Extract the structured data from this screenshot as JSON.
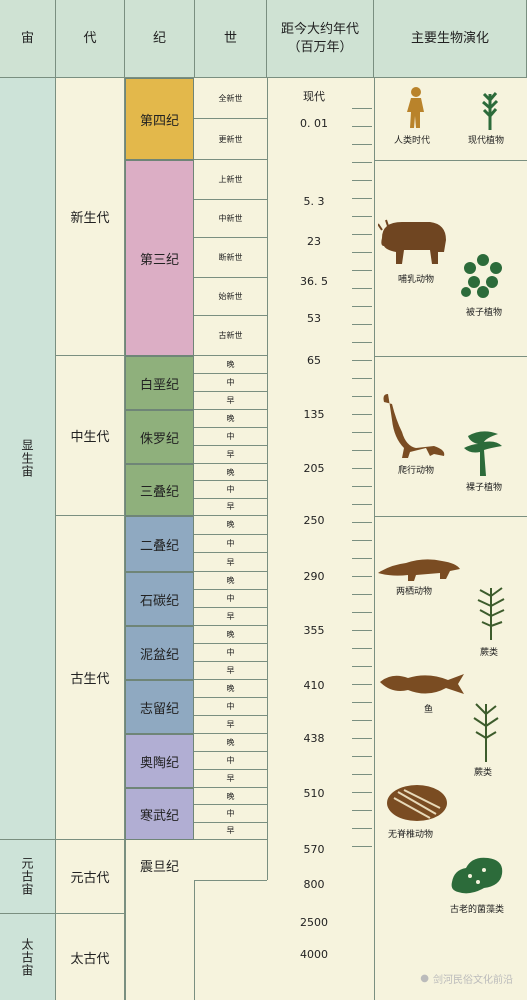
{
  "headers": {
    "eon": "宙",
    "era": "代",
    "period": "纪",
    "epoch": "世",
    "age": "距今大约年代\n（百万年）",
    "evolution": "主要生物演化"
  },
  "eons": {
    "phanerozoic": "显生宙",
    "proterozoic": "元古宙",
    "archean": "太古宙"
  },
  "eras": {
    "cenozoic": "新生代",
    "mesozoic": "中生代",
    "paleozoic": "古生代",
    "proterozoic": "元古代",
    "archean": "太古代"
  },
  "periods": {
    "quaternary": "第四纪",
    "tertiary": "第三纪",
    "cretaceous": "白垩纪",
    "jurassic": "侏罗纪",
    "triassic": "三叠纪",
    "permian": "二叠纪",
    "carboniferous": "石碳纪",
    "devonian": "泥盆纪",
    "silurian": "志留纪",
    "ordovician": "奥陶纪",
    "cambrian": "寒武纪",
    "sinian": "震旦纪"
  },
  "colors": {
    "quaternary": "#e3b84b",
    "tertiary": "#dcaec5",
    "mesozoic": "#8fb07c",
    "paleozoic": "#8fa9c1",
    "ordovician_cambrian": "#b1aed3",
    "header": "#cfe2d3",
    "eon": "#cde3d8",
    "background": "#f6f3dd"
  },
  "epochs": {
    "holocene": "全新世",
    "pleistocene": "更新世",
    "pliocene": "上新世",
    "miocene": "中新世",
    "oligocene": "断新世",
    "eocene": "始新世",
    "paleocene": "古新世",
    "late": "晚",
    "middle": "中",
    "early": "早"
  },
  "ages": [
    "现代",
    "0. 01",
    "5. 3",
    "23",
    "36. 5",
    "53",
    "65",
    "135",
    "205",
    "250",
    "290",
    "355",
    "410",
    "438",
    "510",
    "570",
    "800",
    "2500",
    "4000"
  ],
  "evolution": {
    "humans": "人类时代",
    "modern_plants": "现代植物",
    "mammals": "哺乳动物",
    "angiosperms": "被子植物",
    "reptiles": "爬行动物",
    "gymnosperms": "裸子植物",
    "amphibians": "两栖动物",
    "ferns1": "蕨类",
    "fish": "鱼",
    "ferns2": "蕨类",
    "invertebrates": "无脊椎动物",
    "algae": "古老的菌藻类"
  },
  "watermark": "剑河民俗文化前沿"
}
